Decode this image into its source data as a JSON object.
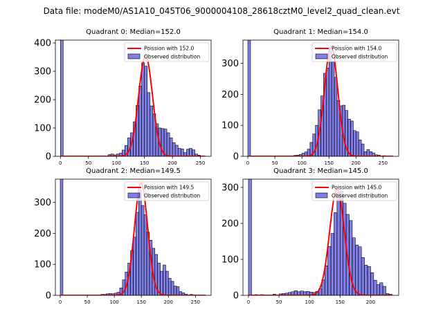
{
  "figure": {
    "suptitle": "Data file: modeM0/AS1A10_045T06_9000004108_28618cztM0_level2_quad_clean.evt",
    "hist_color": "#0000cc",
    "hist_edge": "#000000",
    "fit_color": "#ff0000"
  },
  "chart_data": [
    {
      "type": "bar",
      "title": "Quadrant 0: Median=152.0",
      "legend": {
        "fit": "Poission with 152.0",
        "hist": "Observed distribution",
        "placement": "top-right"
      },
      "xlim": [
        -9,
        269
      ],
      "ylim": [
        0,
        410
      ],
      "xticks": [
        0,
        50,
        100,
        150,
        200,
        250
      ],
      "yticks": [
        0,
        100,
        200,
        300,
        400
      ],
      "bin_width": 5,
      "zero_bin": [
        0,
        410
      ],
      "bins": [
        [
          85,
          6
        ],
        [
          90,
          8
        ],
        [
          95,
          5
        ],
        [
          100,
          8
        ],
        [
          105,
          11
        ],
        [
          110,
          22
        ],
        [
          115,
          38
        ],
        [
          120,
          65
        ],
        [
          125,
          83
        ],
        [
          130,
          122
        ],
        [
          135,
          180
        ],
        [
          140,
          248
        ],
        [
          145,
          330
        ],
        [
          150,
          318
        ],
        [
          155,
          225
        ],
        [
          160,
          178
        ],
        [
          165,
          150
        ],
        [
          170,
          115
        ],
        [
          175,
          100
        ],
        [
          180,
          98
        ],
        [
          185,
          96
        ],
        [
          190,
          83
        ],
        [
          195,
          65
        ],
        [
          200,
          48
        ],
        [
          205,
          39
        ],
        [
          210,
          28
        ],
        [
          215,
          26
        ],
        [
          220,
          13
        ],
        [
          225,
          25
        ],
        [
          230,
          28
        ],
        [
          235,
          23
        ],
        [
          240,
          8
        ],
        [
          245,
          4
        ]
      ],
      "fit_peak": 355
    },
    {
      "type": "bar",
      "title": "Quadrant 1: Median=154.0",
      "legend": {
        "fit": "Poission with 154.0",
        "hist": "Observed distribution",
        "placement": "top-right"
      },
      "xlim": [
        -9,
        279
      ],
      "ylim": [
        0,
        375
      ],
      "xticks": [
        0,
        50,
        100,
        150,
        200,
        250
      ],
      "yticks": [
        0,
        100,
        200,
        300
      ],
      "bin_width": 5,
      "zero_bin": [
        0,
        375
      ],
      "bins": [
        [
          85,
          3
        ],
        [
          90,
          4
        ],
        [
          95,
          6
        ],
        [
          100,
          10
        ],
        [
          105,
          14
        ],
        [
          110,
          23
        ],
        [
          115,
          45
        ],
        [
          120,
          72
        ],
        [
          125,
          100
        ],
        [
          130,
          150
        ],
        [
          135,
          195
        ],
        [
          140,
          268
        ],
        [
          145,
          285
        ],
        [
          150,
          340
        ],
        [
          155,
          305
        ],
        [
          160,
          255
        ],
        [
          165,
          180
        ],
        [
          170,
          163
        ],
        [
          175,
          165
        ],
        [
          180,
          148
        ],
        [
          185,
          120
        ],
        [
          190,
          114
        ],
        [
          195,
          83
        ],
        [
          200,
          79
        ],
        [
          205,
          53
        ],
        [
          210,
          40
        ],
        [
          215,
          15
        ],
        [
          220,
          22
        ],
        [
          225,
          15
        ],
        [
          230,
          11
        ],
        [
          235,
          5
        ],
        [
          240,
          4
        ],
        [
          250,
          2
        ]
      ],
      "fit_peak": 355
    },
    {
      "type": "bar",
      "title": "Quadrant 2: Median=149.5",
      "legend": {
        "fit": "Poission with 149.5",
        "hist": "Observed distribution",
        "placement": "top-right"
      },
      "xlim": [
        -9,
        279
      ],
      "ylim": [
        0,
        375
      ],
      "xticks": [
        0,
        50,
        100,
        150,
        200,
        250
      ],
      "yticks": [
        0,
        100,
        200,
        300
      ],
      "bin_width": 5,
      "zero_bin": [
        0,
        375
      ],
      "bins": [
        [
          75,
          3
        ],
        [
          80,
          3
        ],
        [
          85,
          5
        ],
        [
          90,
          6
        ],
        [
          95,
          5
        ],
        [
          100,
          7
        ],
        [
          105,
          10
        ],
        [
          110,
          24
        ],
        [
          115,
          50
        ],
        [
          120,
          75
        ],
        [
          125,
          104
        ],
        [
          130,
          145
        ],
        [
          135,
          188
        ],
        [
          140,
          268
        ],
        [
          145,
          340
        ],
        [
          150,
          290
        ],
        [
          155,
          260
        ],
        [
          160,
          204
        ],
        [
          165,
          178
        ],
        [
          170,
          152
        ],
        [
          175,
          132
        ],
        [
          180,
          104
        ],
        [
          185,
          78
        ],
        [
          190,
          98
        ],
        [
          195,
          78
        ],
        [
          200,
          55
        ],
        [
          205,
          45
        ],
        [
          210,
          30
        ],
        [
          215,
          28
        ],
        [
          220,
          12
        ],
        [
          225,
          8
        ],
        [
          230,
          4
        ],
        [
          240,
          3
        ]
      ],
      "fit_peak": 362
    },
    {
      "type": "bar",
      "title": "Quadrant 3: Median=145.0",
      "legend": {
        "fit": "Poission with 145.0",
        "hist": "Observed distribution",
        "placement": "top-right"
      },
      "xlim": [
        -9,
        246
      ],
      "ylim": [
        0,
        323
      ],
      "xticks": [
        0,
        50,
        100,
        150,
        200
      ],
      "yticks": [
        0,
        100,
        200,
        300
      ],
      "bin_width": 5,
      "zero_bin": [
        0,
        323
      ],
      "bins": [
        [
          10,
          2
        ],
        [
          20,
          2
        ],
        [
          40,
          3
        ],
        [
          50,
          4
        ],
        [
          55,
          5
        ],
        [
          60,
          6
        ],
        [
          65,
          8
        ],
        [
          70,
          10
        ],
        [
          75,
          13
        ],
        [
          80,
          10
        ],
        [
          85,
          12
        ],
        [
          90,
          10
        ],
        [
          95,
          11
        ],
        [
          100,
          9
        ],
        [
          105,
          8
        ],
        [
          110,
          11
        ],
        [
          115,
          18
        ],
        [
          120,
          43
        ],
        [
          125,
          82
        ],
        [
          130,
          136
        ],
        [
          135,
          172
        ],
        [
          140,
          230
        ],
        [
          145,
          285
        ],
        [
          150,
          290
        ],
        [
          155,
          256
        ],
        [
          160,
          225
        ],
        [
          165,
          208
        ],
        [
          170,
          160
        ],
        [
          175,
          140
        ],
        [
          180,
          135
        ],
        [
          185,
          105
        ],
        [
          190,
          84
        ],
        [
          195,
          80
        ],
        [
          200,
          63
        ],
        [
          205,
          42
        ],
        [
          210,
          30
        ],
        [
          215,
          35
        ],
        [
          220,
          25
        ],
        [
          225,
          5
        ],
        [
          230,
          3
        ]
      ],
      "fit_peak": 295
    }
  ]
}
